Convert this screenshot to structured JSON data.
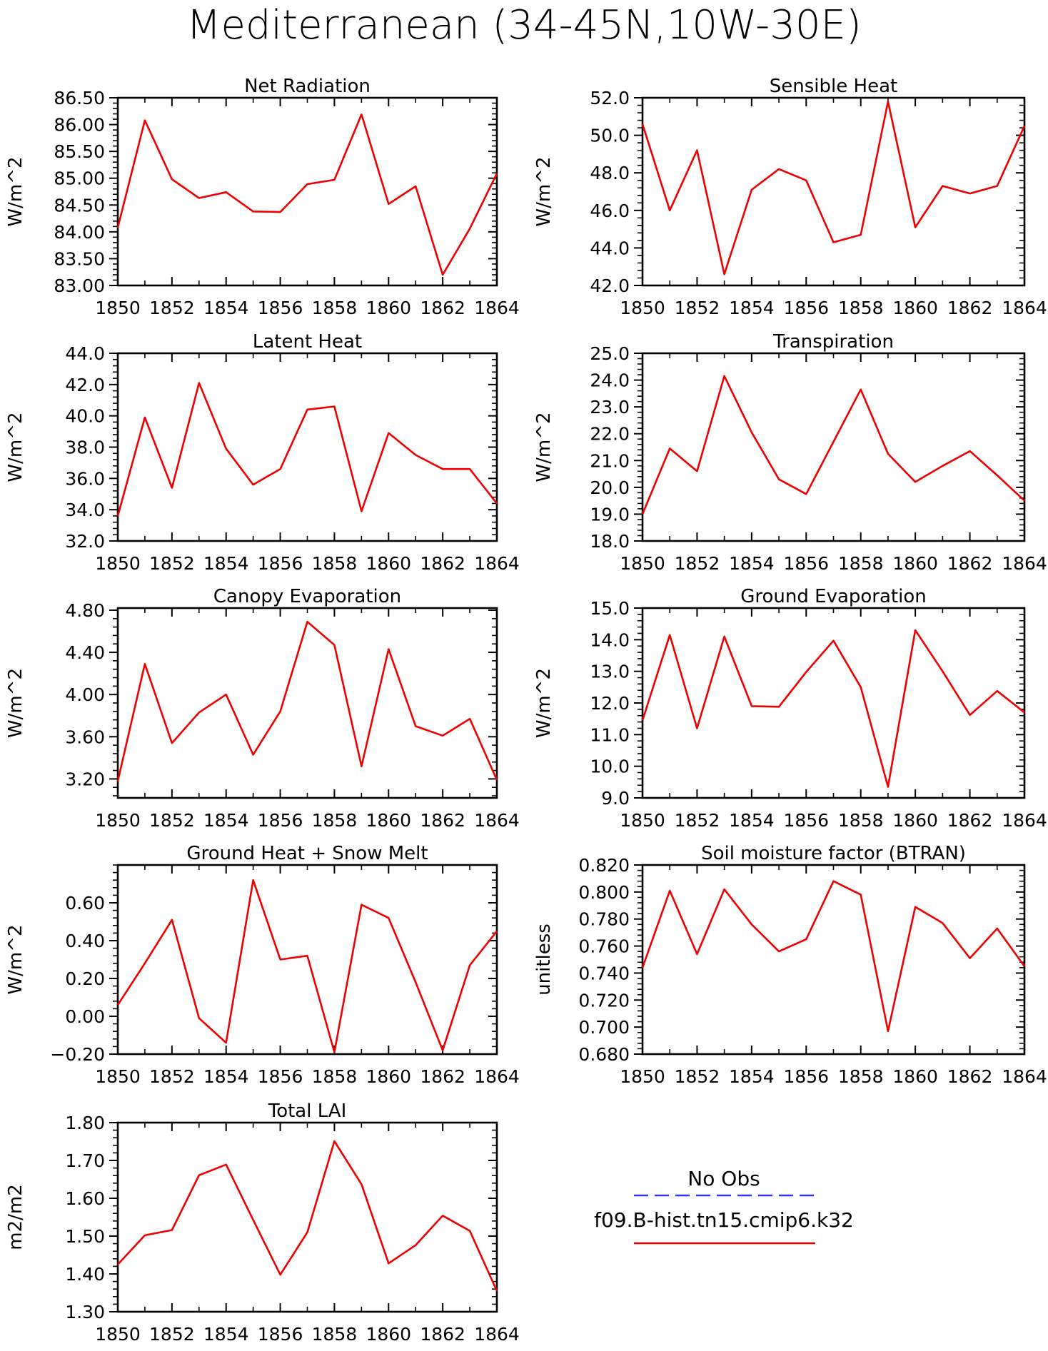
{
  "figure": {
    "title": "Mediterranean (34-45N,10W-30E)"
  },
  "legend": {
    "entries": [
      {
        "label": "No Obs",
        "color": "#3333ff",
        "style": "dashed"
      },
      {
        "label": "f09.B-hist.tn15.cmip6.k32",
        "color": "#ee0000",
        "style": "solid"
      }
    ]
  },
  "chart_data": [
    {
      "type": "line",
      "title": "Net Radiation",
      "ylabel": "W/m^2",
      "xlim": [
        1850,
        1864
      ],
      "ylim": [
        83.0,
        86.5
      ],
      "xticks": [
        "1850",
        "1852",
        "1854",
        "1856",
        "1858",
        "1860",
        "1862",
        "1864"
      ],
      "yticks": [
        "83.00",
        "83.50",
        "84.00",
        "84.50",
        "85.00",
        "85.50",
        "86.00",
        "86.50"
      ],
      "x": [
        1850,
        1851,
        1852,
        1853,
        1854,
        1855,
        1856,
        1857,
        1858,
        1859,
        1860,
        1861,
        1862,
        1863,
        1864
      ],
      "series": [
        {
          "values": [
            84.08,
            86.08,
            84.98,
            84.63,
            84.74,
            84.38,
            84.37,
            84.89,
            84.97,
            86.19,
            84.52,
            84.85,
            83.2,
            84.06,
            85.09
          ],
          "color": "#ee0000"
        }
      ]
    },
    {
      "type": "line",
      "title": "Sensible Heat",
      "ylabel": "W/m^2",
      "xlim": [
        1850,
        1864
      ],
      "ylim": [
        42.0,
        52.0
      ],
      "xticks": [
        "1850",
        "1852",
        "1854",
        "1856",
        "1858",
        "1860",
        "1862",
        "1864"
      ],
      "yticks": [
        "42.0",
        "44.0",
        "46.0",
        "48.0",
        "50.0",
        "52.0"
      ],
      "x": [
        1850,
        1851,
        1852,
        1853,
        1854,
        1855,
        1856,
        1857,
        1858,
        1859,
        1860,
        1861,
        1862,
        1863,
        1864
      ],
      "series": [
        {
          "values": [
            50.6,
            46.0,
            49.2,
            42.6,
            47.1,
            48.2,
            47.6,
            44.3,
            44.7,
            51.8,
            45.1,
            47.3,
            46.9,
            47.3,
            50.5
          ],
          "color": "#ee0000"
        }
      ]
    },
    {
      "type": "line",
      "title": "Latent Heat",
      "ylabel": "W/m^2",
      "xlim": [
        1850,
        1864
      ],
      "ylim": [
        32.0,
        44.0
      ],
      "xticks": [
        "1850",
        "1852",
        "1854",
        "1856",
        "1858",
        "1860",
        "1862",
        "1864"
      ],
      "yticks": [
        "32.0",
        "34.0",
        "36.0",
        "38.0",
        "40.0",
        "42.0",
        "44.0"
      ],
      "x": [
        1850,
        1851,
        1852,
        1853,
        1854,
        1855,
        1856,
        1857,
        1858,
        1859,
        1860,
        1861,
        1862,
        1863,
        1864
      ],
      "series": [
        {
          "values": [
            33.6,
            39.9,
            35.4,
            42.1,
            37.9,
            35.6,
            36.6,
            40.4,
            40.6,
            33.9,
            38.9,
            37.5,
            36.6,
            36.6,
            34.4
          ],
          "color": "#ee0000"
        }
      ]
    },
    {
      "type": "line",
      "title": "Transpiration",
      "ylabel": "W/m^2",
      "xlim": [
        1850,
        1864
      ],
      "ylim": [
        18.0,
        25.0
      ],
      "xticks": [
        "1850",
        "1852",
        "1854",
        "1856",
        "1858",
        "1860",
        "1862",
        "1864"
      ],
      "yticks": [
        "18.0",
        "19.0",
        "20.0",
        "21.0",
        "22.0",
        "23.0",
        "24.0",
        "25.0"
      ],
      "x": [
        1850,
        1851,
        1852,
        1853,
        1854,
        1855,
        1856,
        1857,
        1858,
        1859,
        1860,
        1861,
        1862,
        1863,
        1864
      ],
      "series": [
        {
          "values": [
            19.0,
            21.45,
            20.6,
            24.15,
            22.05,
            20.3,
            19.75,
            21.7,
            23.65,
            21.25,
            20.2,
            20.8,
            21.35,
            20.45,
            19.5
          ],
          "color": "#ee0000"
        }
      ]
    },
    {
      "type": "line",
      "title": "Canopy Evaporation",
      "ylabel": "W/m^2",
      "xlim": [
        1850,
        1864
      ],
      "ylim": [
        3.02,
        4.82
      ],
      "xticks": [
        "1850",
        "1852",
        "1854",
        "1856",
        "1858",
        "1860",
        "1862",
        "1864"
      ],
      "yticks": [
        "3.20",
        "3.60",
        "4.00",
        "4.40",
        "4.80"
      ],
      "x": [
        1850,
        1851,
        1852,
        1853,
        1854,
        1855,
        1856,
        1857,
        1858,
        1859,
        1860,
        1861,
        1862,
        1863,
        1864
      ],
      "series": [
        {
          "values": [
            3.18,
            4.29,
            3.54,
            3.83,
            4.0,
            3.43,
            3.84,
            4.69,
            4.47,
            3.32,
            4.43,
            3.7,
            3.61,
            3.77,
            3.19
          ],
          "color": "#ee0000"
        }
      ]
    },
    {
      "type": "line",
      "title": "Ground Evaporation",
      "ylabel": "W/m^2",
      "xlim": [
        1850,
        1864
      ],
      "ylim": [
        9.0,
        15.0
      ],
      "xticks": [
        "1850",
        "1852",
        "1854",
        "1856",
        "1858",
        "1860",
        "1862",
        "1864"
      ],
      "yticks": [
        "9.0",
        "10.0",
        "11.0",
        "12.0",
        "13.0",
        "14.0",
        "15.0"
      ],
      "x": [
        1850,
        1851,
        1852,
        1853,
        1854,
        1855,
        1856,
        1857,
        1858,
        1859,
        1860,
        1861,
        1862,
        1863,
        1864
      ],
      "series": [
        {
          "values": [
            11.45,
            14.15,
            11.2,
            14.1,
            11.9,
            11.88,
            12.98,
            13.97,
            12.5,
            9.35,
            14.3,
            13.0,
            11.62,
            12.38,
            11.7
          ],
          "color": "#ee0000"
        }
      ]
    },
    {
      "type": "line",
      "title": "Ground Heat + Snow Melt",
      "ylabel": "W/m^2",
      "xlim": [
        1850,
        1864
      ],
      "ylim": [
        -0.2,
        0.8
      ],
      "xticks": [
        "1850",
        "1852",
        "1854",
        "1856",
        "1858",
        "1860",
        "1862",
        "1864"
      ],
      "yticks": [
        "-0.20",
        "0.00",
        "0.20",
        "0.40",
        "0.60"
      ],
      "x": [
        1850,
        1851,
        1852,
        1853,
        1854,
        1855,
        1856,
        1857,
        1858,
        1859,
        1860,
        1861,
        1862,
        1863,
        1864
      ],
      "series": [
        {
          "values": [
            0.06,
            0.28,
            0.51,
            -0.01,
            -0.14,
            0.72,
            0.3,
            0.32,
            -0.19,
            0.59,
            0.52,
            0.18,
            -0.18,
            0.27,
            0.45
          ],
          "color": "#ee0000"
        }
      ]
    },
    {
      "type": "line",
      "title": "Soil moisture factor (BTRAN)",
      "ylabel": "unitless",
      "xlim": [
        1850,
        1864
      ],
      "ylim": [
        0.68,
        0.82
      ],
      "xticks": [
        "1850",
        "1852",
        "1854",
        "1856",
        "1858",
        "1860",
        "1862",
        "1864"
      ],
      "yticks": [
        "0.680",
        "0.700",
        "0.720",
        "0.740",
        "0.760",
        "0.780",
        "0.800",
        "0.820"
      ],
      "x": [
        1850,
        1851,
        1852,
        1853,
        1854,
        1855,
        1856,
        1857,
        1858,
        1859,
        1860,
        1861,
        1862,
        1863,
        1864
      ],
      "series": [
        {
          "values": [
            0.744,
            0.801,
            0.754,
            0.802,
            0.776,
            0.756,
            0.765,
            0.808,
            0.798,
            0.697,
            0.789,
            0.777,
            0.751,
            0.773,
            0.745
          ],
          "color": "#ee0000"
        }
      ]
    },
    {
      "type": "line",
      "title": "Total LAI",
      "ylabel": "m2/m2",
      "xlim": [
        1850,
        1864
      ],
      "ylim": [
        1.3,
        1.8
      ],
      "xticks": [
        "1850",
        "1852",
        "1854",
        "1856",
        "1858",
        "1860",
        "1862",
        "1864"
      ],
      "yticks": [
        "1.30",
        "1.40",
        "1.50",
        "1.60",
        "1.70",
        "1.80"
      ],
      "x": [
        1850,
        1851,
        1852,
        1853,
        1854,
        1855,
        1856,
        1857,
        1858,
        1859,
        1860,
        1861,
        1862,
        1863,
        1864
      ],
      "series": [
        {
          "values": [
            1.425,
            1.502,
            1.516,
            1.661,
            1.689,
            1.543,
            1.398,
            1.51,
            1.751,
            1.637,
            1.428,
            1.476,
            1.554,
            1.514,
            1.355
          ],
          "color": "#ee0000"
        }
      ]
    }
  ]
}
